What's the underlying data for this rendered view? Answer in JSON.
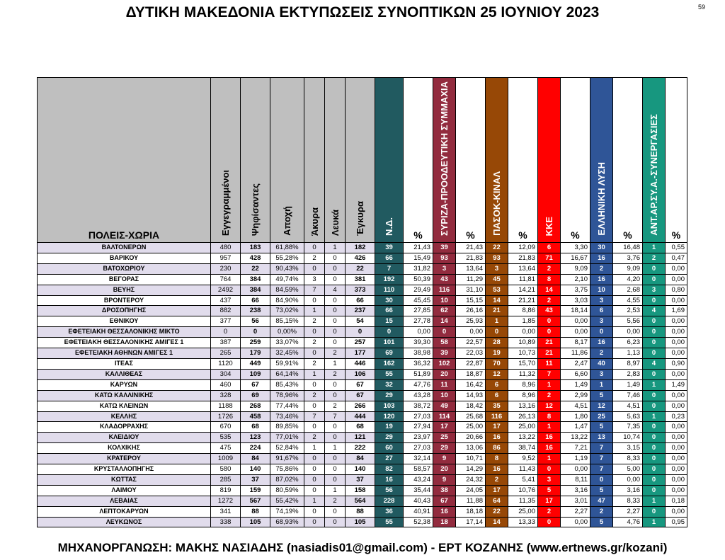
{
  "title": "ΔΥΤΙΚΗ ΜΑΚΕΔΟΝΙΑ ΕΚΤΥΠΩΣΕΙΣ ΣΥΝΟΠΤΙΚΩΝ 25 ΙΟΥΝΙΟΥ 2023",
  "page_number": "59",
  "footer": "ΜΗΧΑΝΟΡΓΑΝΩΣΗ: ΜΑΚΗΣ ΝΑΣΙΑΔΗΣ (nasiadis01@gmail.com) - ΕΡΤ ΚΟΖΑΝΗΣ (www.ertnews.gr/kozani)",
  "colors": {
    "header_grey": "#bfbfbf",
    "row_tint": "#e1dcec",
    "nd": "#215a60",
    "syriza": "#922b3e",
    "pasok": "#974806",
    "kke": "#ff0000",
    "elliniki_lysi": "#2f5597",
    "ant": "#17977f"
  },
  "headers": {
    "place": "ΠΟΛΕΙΣ-ΧΩΡΙΑ",
    "registered": "Εγγεγραμμένοι",
    "voted": "Ψηφίσαντες",
    "turnout": "Αποχή",
    "invalid": "Άκυρα",
    "blank": "Λευκά",
    "valid": "Έγκυρα",
    "pct": "%"
  },
  "parties": [
    {
      "name": "Ν.Δ.",
      "color": "#215a60"
    },
    {
      "name": "ΣΥΡΙΖΑ-ΠΡΟΟΔΕΥΤΙΚΗ ΣΥΜΜΑΧΙΑ",
      "color": "#922b3e"
    },
    {
      "name": "ΠΑΣΟΚ-ΚΙΝΑΛ",
      "color": "#974806"
    },
    {
      "name": "ΚΚΕ",
      "color": "#ff0000"
    },
    {
      "name": "ΕΛΛΗΝΙΚΗ ΛΥΣΗ",
      "color": "#2f5597"
    },
    {
      "name": "ΑΝΤ.ΑΡ.ΣΥ.Α.-ΣΥΝΕΡΓΑΣΙΕΣ",
      "color": "#17977f"
    }
  ],
  "rows": [
    [
      "ΒΑΛΤΟΝΕΡΩΝ",
      "480",
      "183",
      "61,88%",
      "0",
      "1",
      "182",
      "39",
      "21,43",
      "39",
      "21,43",
      "22",
      "12,09",
      "6",
      "3,30",
      "30",
      "16,48",
      "1",
      "0,55"
    ],
    [
      "ΒΑΡΙΚΟΥ",
      "957",
      "428",
      "55,28%",
      "2",
      "0",
      "426",
      "66",
      "15,49",
      "93",
      "21,83",
      "93",
      "21,83",
      "71",
      "16,67",
      "16",
      "3,76",
      "2",
      "0,47"
    ],
    [
      "ΒΑΤΟΧΩΡΙΟΥ",
      "230",
      "22",
      "90,43%",
      "0",
      "0",
      "22",
      "7",
      "31,82",
      "3",
      "13,64",
      "3",
      "13,64",
      "2",
      "9,09",
      "2",
      "9,09",
      "0",
      "0,00"
    ],
    [
      "ΒΕΓΟΡΑΣ",
      "764",
      "384",
      "49,74%",
      "3",
      "0",
      "381",
      "192",
      "50,39",
      "43",
      "11,29",
      "45",
      "11,81",
      "8",
      "2,10",
      "16",
      "4,20",
      "0",
      "0,00"
    ],
    [
      "ΒΕΥΗΣ",
      "2492",
      "384",
      "84,59%",
      "7",
      "4",
      "373",
      "110",
      "29,49",
      "116",
      "31,10",
      "53",
      "14,21",
      "14",
      "3,75",
      "10",
      "2,68",
      "3",
      "0,80"
    ],
    [
      "ΒΡΟΝΤΕΡΟΥ",
      "437",
      "66",
      "84,90%",
      "0",
      "0",
      "66",
      "30",
      "45,45",
      "10",
      "15,15",
      "14",
      "21,21",
      "2",
      "3,03",
      "3",
      "4,55",
      "0",
      "0,00"
    ],
    [
      "ΔΡΟΣΟΠΗΓΗΣ",
      "882",
      "238",
      "73,02%",
      "1",
      "0",
      "237",
      "66",
      "27,85",
      "62",
      "26,16",
      "21",
      "8,86",
      "43",
      "18,14",
      "6",
      "2,53",
      "4",
      "1,69"
    ],
    [
      "ΕΘΝΙΚΟΥ",
      "377",
      "56",
      "85,15%",
      "2",
      "0",
      "54",
      "15",
      "27,78",
      "14",
      "25,93",
      "1",
      "1,85",
      "0",
      "0,00",
      "3",
      "5,56",
      "0",
      "0,00"
    ],
    [
      "ΕΦΕΤΕΙΑΚΗ ΘΕΣΣΑΛΟΝΙΚΗΣ ΜΙΚΤΟ",
      "0",
      "0",
      "0,00%",
      "0",
      "0",
      "0",
      "0",
      "0,00",
      "0",
      "0,00",
      "0",
      "0,00",
      "0",
      "0,00",
      "0",
      "0,00",
      "0",
      "0,00"
    ],
    [
      "ΕΦΕΤΕΙΑΚΗ ΘΕΣΣΑΛΟΝΙΚΗΣ ΑΜΙΓΕΣ 1",
      "387",
      "259",
      "33,07%",
      "2",
      "0",
      "257",
      "101",
      "39,30",
      "58",
      "22,57",
      "28",
      "10,89",
      "21",
      "8,17",
      "16",
      "6,23",
      "0",
      "0,00"
    ],
    [
      "ΕΦΕΤΕΙΑΚΗ ΑΘΗΝΩΝ ΑΜΙΓΕΣ 1",
      "265",
      "179",
      "32,45%",
      "0",
      "2",
      "177",
      "69",
      "38,98",
      "39",
      "22,03",
      "19",
      "10,73",
      "21",
      "11,86",
      "2",
      "1,13",
      "0",
      "0,00"
    ],
    [
      "ΙΤΕΑΣ",
      "1120",
      "449",
      "59,91%",
      "2",
      "1",
      "446",
      "162",
      "36,32",
      "102",
      "22,87",
      "70",
      "15,70",
      "11",
      "2,47",
      "40",
      "8,97",
      "4",
      "0,90"
    ],
    [
      "ΚΑΛΛΙΘΕΑΣ",
      "304",
      "109",
      "64,14%",
      "1",
      "2",
      "106",
      "55",
      "51,89",
      "20",
      "18,87",
      "12",
      "11,32",
      "7",
      "6,60",
      "3",
      "2,83",
      "0",
      "0,00"
    ],
    [
      "ΚΑΡΥΩΝ",
      "460",
      "67",
      "85,43%",
      "0",
      "0",
      "67",
      "32",
      "47,76",
      "11",
      "16,42",
      "6",
      "8,96",
      "1",
      "1,49",
      "1",
      "1,49",
      "1",
      "1,49"
    ],
    [
      "ΚΑΤΩ ΚΑΛΛΙΝΙΚΗΣ",
      "328",
      "69",
      "78,96%",
      "2",
      "0",
      "67",
      "29",
      "43,28",
      "10",
      "14,93",
      "6",
      "8,96",
      "2",
      "2,99",
      "5",
      "7,46",
      "0",
      "0,00"
    ],
    [
      "ΚΑΤΩ ΚΛΕΙΝΩΝ",
      "1188",
      "268",
      "77,44%",
      "0",
      "2",
      "266",
      "103",
      "38,72",
      "49",
      "18,42",
      "35",
      "13,16",
      "12",
      "4,51",
      "12",
      "4,51",
      "0",
      "0,00"
    ],
    [
      "ΚΕΛΛΗΣ",
      "1726",
      "458",
      "73,46%",
      "7",
      "7",
      "444",
      "120",
      "27,03",
      "114",
      "25,68",
      "116",
      "26,13",
      "8",
      "1,80",
      "25",
      "5,63",
      "1",
      "0,23"
    ],
    [
      "ΚΛΑΔΟΡΡΑΧΗΣ",
      "670",
      "68",
      "89,85%",
      "0",
      "0",
      "68",
      "19",
      "27,94",
      "17",
      "25,00",
      "17",
      "25,00",
      "1",
      "1,47",
      "5",
      "7,35",
      "0",
      "0,00"
    ],
    [
      "ΚΛΕΙΔΙΟΥ",
      "535",
      "123",
      "77,01%",
      "2",
      "0",
      "121",
      "29",
      "23,97",
      "25",
      "20,66",
      "16",
      "13,22",
      "16",
      "13,22",
      "13",
      "10,74",
      "0",
      "0,00"
    ],
    [
      "ΚΟΛΧΙΚΗΣ",
      "475",
      "224",
      "52,84%",
      "1",
      "1",
      "222",
      "60",
      "27,03",
      "29",
      "13,06",
      "86",
      "38,74",
      "16",
      "7,21",
      "7",
      "3,15",
      "0",
      "0,00"
    ],
    [
      "ΚΡΑΤΕΡΟΥ",
      "1009",
      "84",
      "91,67%",
      "0",
      "0",
      "84",
      "27",
      "32,14",
      "9",
      "10,71",
      "8",
      "9,52",
      "1",
      "1,19",
      "7",
      "8,33",
      "0",
      "0,00"
    ],
    [
      "ΚΡΥΣΤΑΛΛΟΠΗΓΗΣ",
      "580",
      "140",
      "75,86%",
      "0",
      "0",
      "140",
      "82",
      "58,57",
      "20",
      "14,29",
      "16",
      "11,43",
      "0",
      "0,00",
      "7",
      "5,00",
      "0",
      "0,00"
    ],
    [
      "ΚΩΤΤΑΣ",
      "285",
      "37",
      "87,02%",
      "0",
      "0",
      "37",
      "16",
      "43,24",
      "9",
      "24,32",
      "2",
      "5,41",
      "3",
      "8,11",
      "0",
      "0,00",
      "0",
      "0,00"
    ],
    [
      "ΛΑΙΜΟΥ",
      "819",
      "159",
      "80,59%",
      "0",
      "1",
      "158",
      "56",
      "35,44",
      "38",
      "24,05",
      "17",
      "10,76",
      "5",
      "3,16",
      "5",
      "3,16",
      "0",
      "0,00"
    ],
    [
      "ΛΕΒΑΙΑΣ",
      "1272",
      "567",
      "55,42%",
      "1",
      "2",
      "564",
      "228",
      "40,43",
      "67",
      "11,88",
      "64",
      "11,35",
      "17",
      "3,01",
      "47",
      "8,33",
      "1",
      "0,18"
    ],
    [
      "ΛΕΠΤΟΚΑΡΥΩΝ",
      "341",
      "88",
      "74,19%",
      "0",
      "0",
      "88",
      "36",
      "40,91",
      "16",
      "18,18",
      "22",
      "25,00",
      "2",
      "2,27",
      "2",
      "2,27",
      "0",
      "0,00"
    ],
    [
      "ΛΕΥΚΩΝΟΣ",
      "338",
      "105",
      "68,93%",
      "0",
      "0",
      "105",
      "55",
      "52,38",
      "18",
      "17,14",
      "14",
      "13,33",
      "0",
      "0,00",
      "5",
      "4,76",
      "1",
      "0,95"
    ]
  ]
}
